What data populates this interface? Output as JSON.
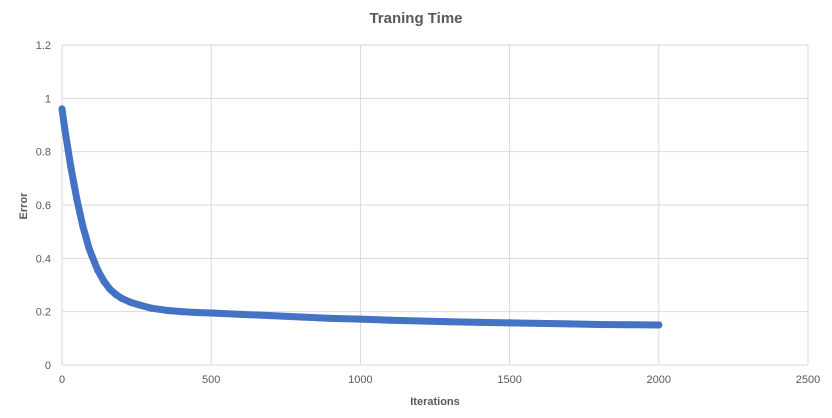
{
  "chart_data": {
    "type": "scatter",
    "title": "Traning Time",
    "xlabel": "Iterations",
    "ylabel": "Error",
    "xlim": [
      0,
      2500
    ],
    "ylim": [
      0,
      1.2
    ],
    "x_ticks": [
      "0",
      "500",
      "1000",
      "1500",
      "2000",
      "2500"
    ],
    "y_ticks": [
      "0",
      "0.2",
      "0.4",
      "0.6",
      "0.8",
      "1",
      "1.2"
    ],
    "grid": true,
    "legend": "none",
    "series": [
      {
        "color": "#4472c4",
        "x": [
          0,
          10,
          20,
          30,
          40,
          50,
          60,
          70,
          80,
          90,
          100,
          120,
          140,
          160,
          180,
          200,
          230,
          260,
          300,
          350,
          400,
          450,
          500,
          600,
          700,
          800,
          900,
          1000,
          1100,
          1200,
          1300,
          1400,
          1500,
          1600,
          1700,
          1800,
          1900,
          2000
        ],
        "y": [
          0.96,
          0.88,
          0.81,
          0.74,
          0.68,
          0.62,
          0.57,
          0.52,
          0.48,
          0.44,
          0.41,
          0.355,
          0.315,
          0.285,
          0.265,
          0.25,
          0.235,
          0.225,
          0.213,
          0.205,
          0.2,
          0.197,
          0.195,
          0.19,
          0.185,
          0.18,
          0.175,
          0.172,
          0.168,
          0.165,
          0.162,
          0.16,
          0.158,
          0.156,
          0.154,
          0.152,
          0.151,
          0.15
        ]
      }
    ]
  }
}
